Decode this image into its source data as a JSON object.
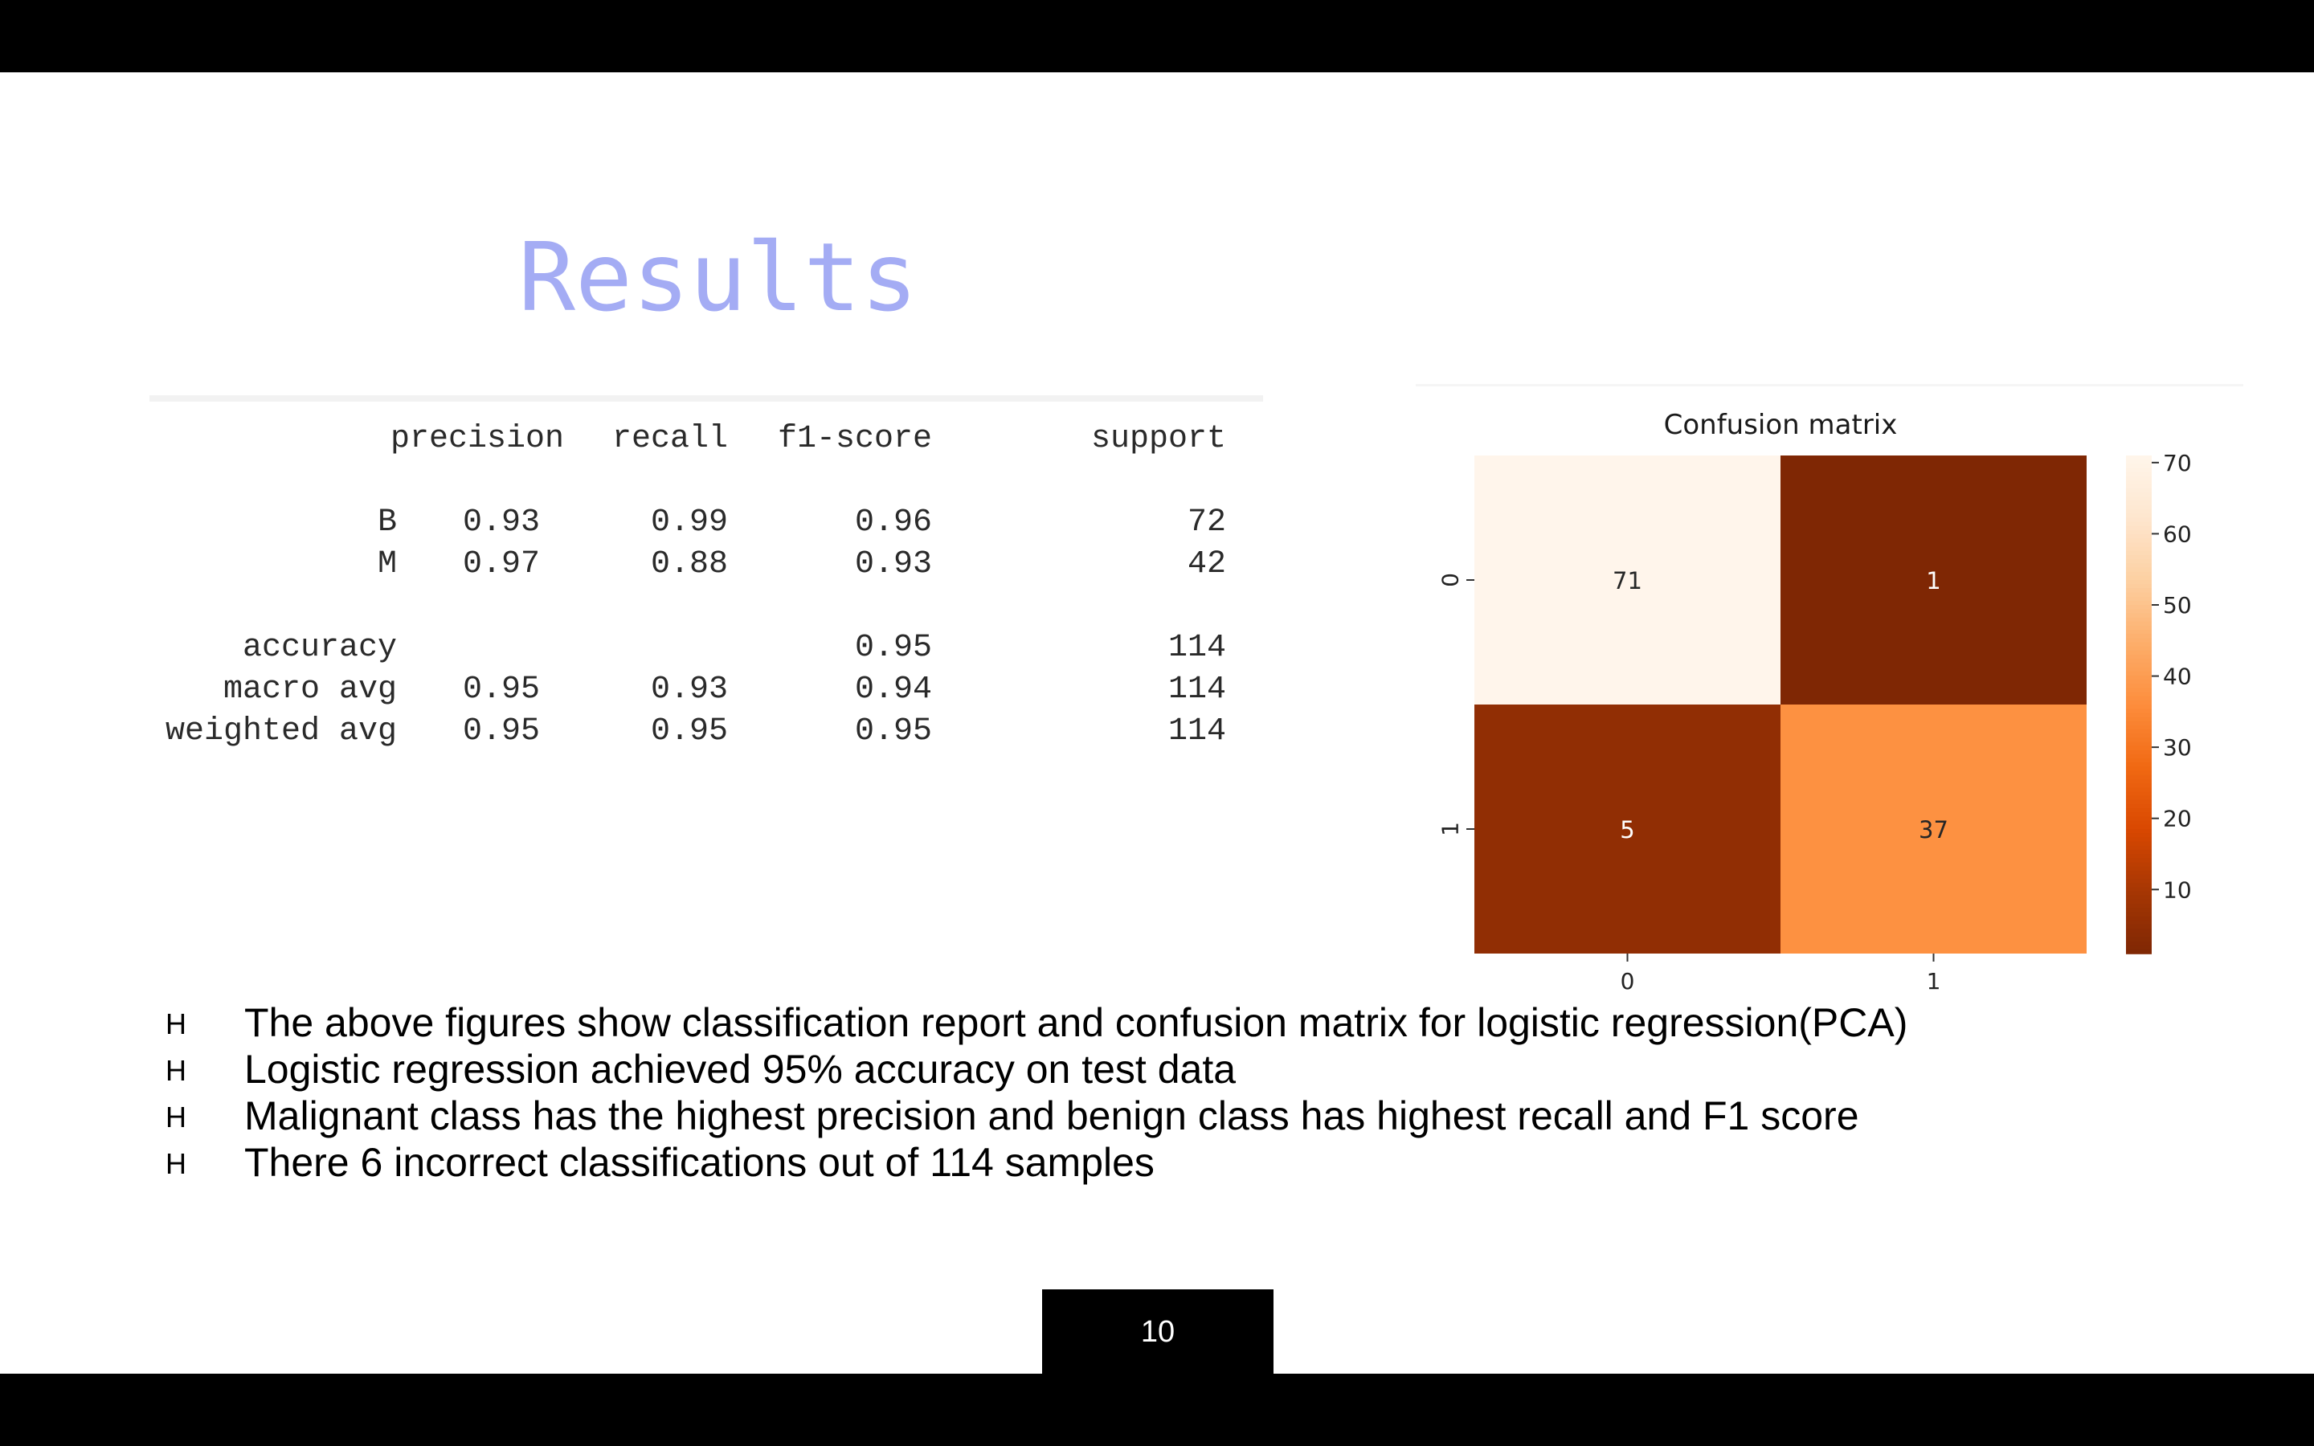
{
  "slide": {
    "title": "Results",
    "title_color": "#a4acf4",
    "page_number": "10",
    "bullet_marker": "H"
  },
  "report": {
    "columns": [
      "precision",
      "recall",
      "f1-score",
      "support"
    ],
    "rows": [
      {
        "label": "B",
        "precision": "0.93",
        "recall": "0.99",
        "f1": "0.96",
        "support": "72"
      },
      {
        "label": "M",
        "precision": "0.97",
        "recall": "0.88",
        "f1": "0.93",
        "support": "42"
      },
      {
        "label": "accuracy",
        "precision": "",
        "recall": "",
        "f1": "0.95",
        "support": "114"
      },
      {
        "label": "macro avg",
        "precision": "0.95",
        "recall": "0.93",
        "f1": "0.94",
        "support": "114"
      },
      {
        "label": "weighted avg",
        "precision": "0.95",
        "recall": "0.95",
        "f1": "0.95",
        "support": "114"
      }
    ]
  },
  "chart_data": {
    "type": "heatmap",
    "title": "Confusion matrix",
    "x_categories": [
      "0",
      "1"
    ],
    "y_categories": [
      "0",
      "1"
    ],
    "values": [
      [
        71,
        1
      ],
      [
        5,
        37
      ]
    ],
    "colorbar": {
      "ticks": [
        10,
        20,
        30,
        40,
        50,
        60,
        70
      ],
      "range": [
        1,
        71
      ],
      "placement": "right"
    },
    "colormap": [
      "#7f2704",
      "#a63603",
      "#d94801",
      "#f16913",
      "#fd8d3c",
      "#fdae6b",
      "#fdd0a2",
      "#fee6ce",
      "#fff5eb"
    ],
    "annotation_light": "#ffffff",
    "annotation_dark": "#262626"
  },
  "bullets": [
    "The above figures show classification report and confusion matrix for logistic regression(PCA)",
    "Logistic regression achieved 95% accuracy on test data",
    "Malignant  class has the highest precision and benign class has highest recall and F1 score",
    "There 6 incorrect classifications out of 114 samples"
  ]
}
